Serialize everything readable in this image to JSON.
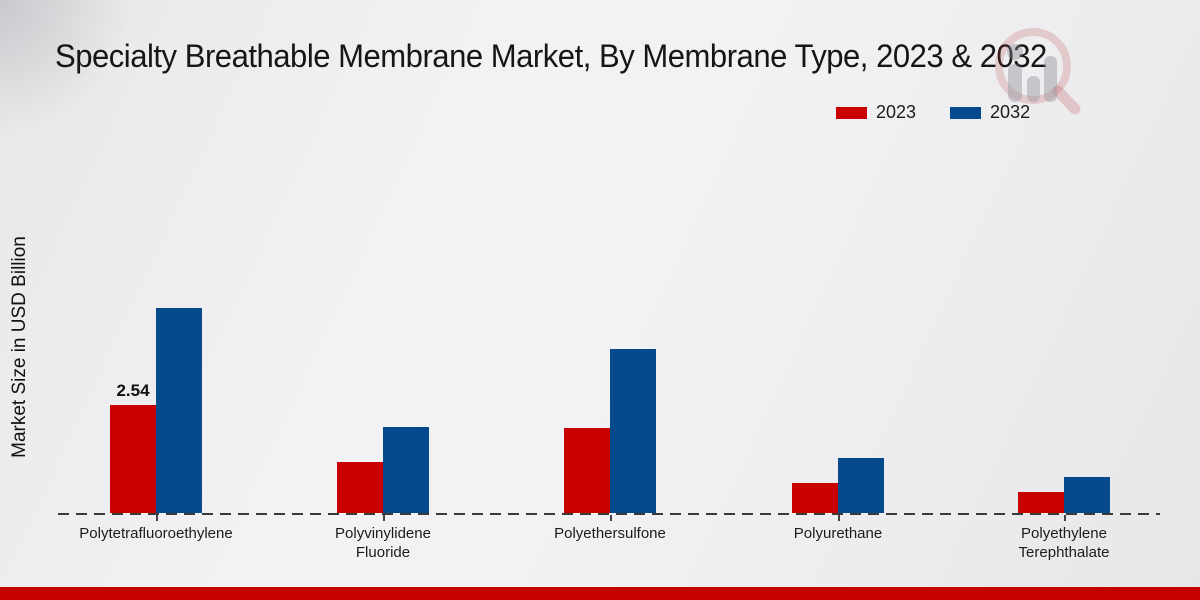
{
  "chart_data": {
    "type": "bar",
    "title": "Specialty Breathable Membrane Market, By Membrane Type, 2023 & 2032",
    "ylabel": "Market Size in USD Billion",
    "categories": [
      "Polytetrafluoroethylene",
      "Polyvinylidene\nFluoride",
      "Polyethersulfone",
      "Polyurethane",
      "Polyethylene\nTerephthalate"
    ],
    "series": [
      {
        "name": "2023",
        "color": "#c80000",
        "values": [
          2.54,
          1.2,
          2.0,
          0.7,
          0.5
        ]
      },
      {
        "name": "2032",
        "color": "#054a8c",
        "values": [
          4.82,
          2.02,
          3.85,
          1.3,
          0.85
        ]
      }
    ],
    "value_labels": [
      {
        "series": "2023",
        "category_index": 0,
        "text": "2.54"
      }
    ],
    "ylim": [
      0,
      5.5
    ],
    "grid": false,
    "legend_position": "top-right",
    "x_baseline_style": "dashed"
  },
  "legend": {
    "items": [
      {
        "label": "2023",
        "color": "#c80000"
      },
      {
        "label": "2032",
        "color": "#054a8c"
      }
    ]
  },
  "footer": {
    "brand_bar_color": "#c40000"
  },
  "watermark_icon": "magnifier-growth-chart-logo"
}
